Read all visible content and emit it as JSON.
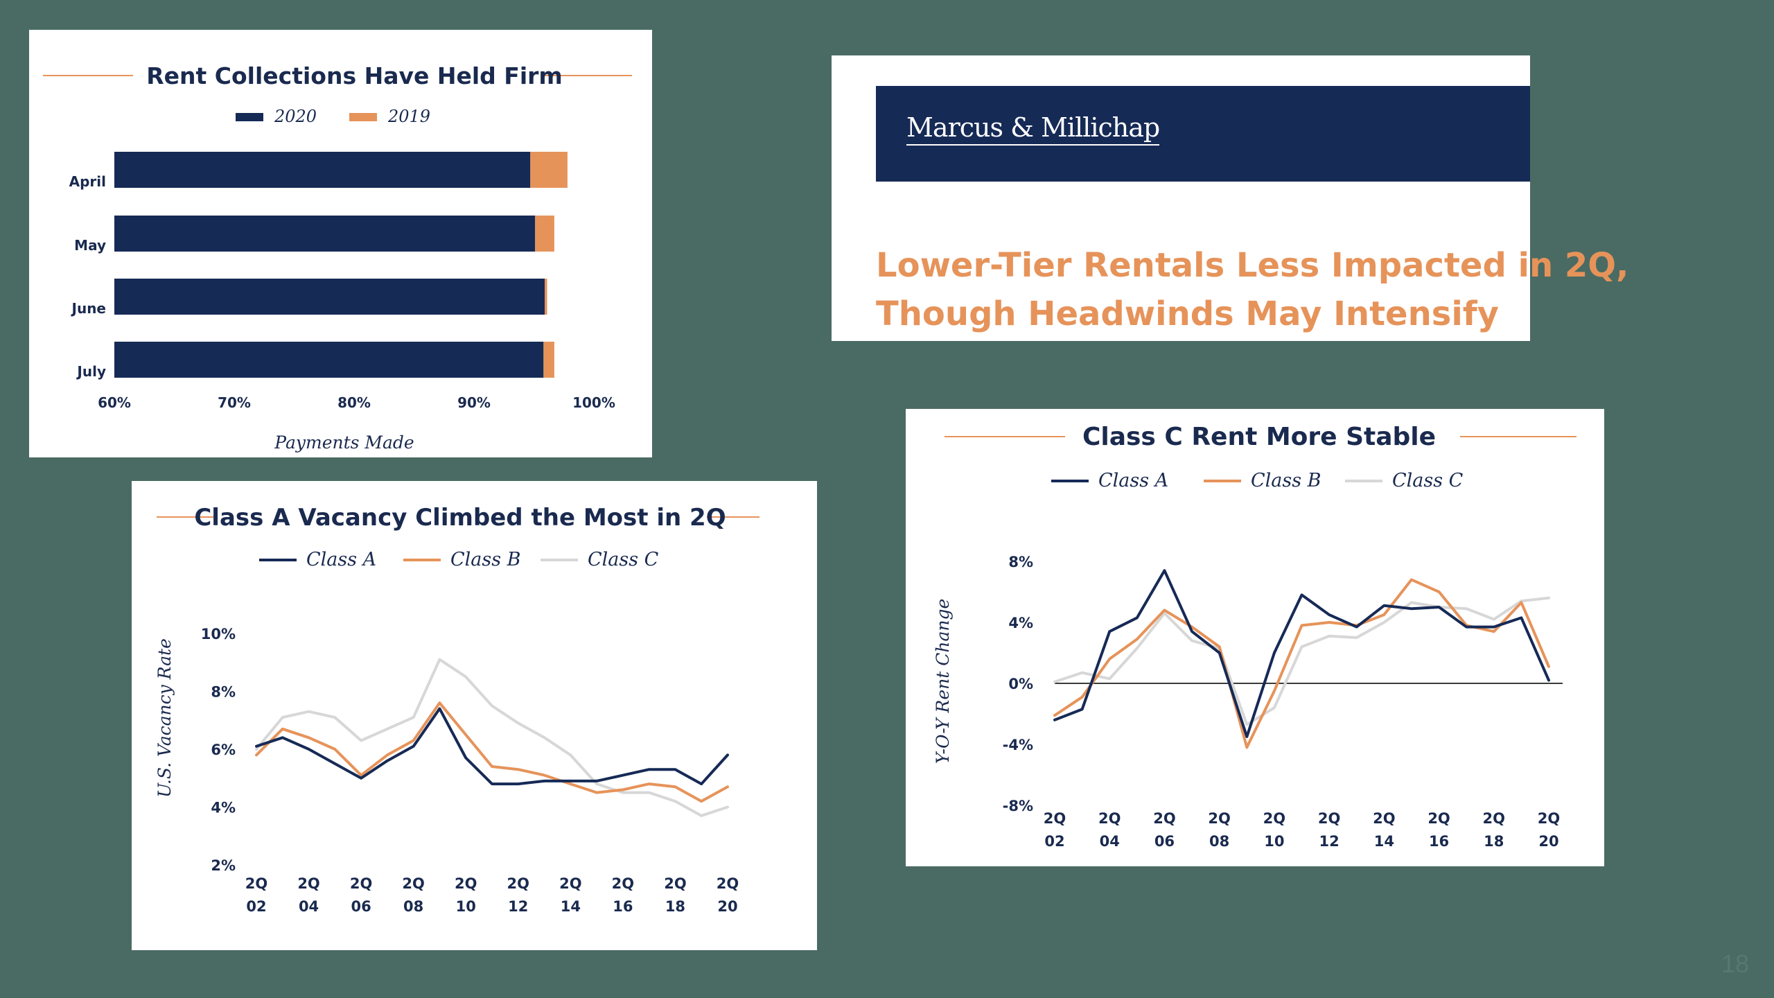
{
  "slide": {
    "page_number": "18"
  },
  "brand": {
    "logo_text": "Marcus & Millichap",
    "headline_line1": "Lower-Tier Rentals Less Impacted in 2Q,",
    "headline_line2": "Though Headwinds May Intensify"
  },
  "colors": {
    "navy": "#162a56",
    "orange": "#e6935a",
    "light_gray": "#d7d7d7",
    "background": "#4a6b63"
  },
  "chart_data": [
    {
      "id": "rent-collections",
      "type": "bar",
      "title": "Rent Collections Have Held Firm",
      "xlabel": "Payments Made",
      "xlim": [
        60,
        100
      ],
      "x_ticks": [
        "60%",
        "70%",
        "80%",
        "90%",
        "100%"
      ],
      "x_tick_values": [
        60,
        70,
        80,
        90,
        100
      ],
      "categories": [
        "April",
        "May",
        "June",
        "July"
      ],
      "series": [
        {
          "name": "2020",
          "color": "#162a56",
          "values": [
            94.7,
            95.1,
            95.9,
            95.8
          ]
        },
        {
          "name": "2019",
          "color": "#e6935a",
          "values": [
            97.8,
            96.7,
            96.1,
            96.7
          ]
        }
      ],
      "legend": "top"
    },
    {
      "id": "class-vacancy",
      "type": "line",
      "title": "Class A Vacancy Climbed the Most in 2Q",
      "ylabel": "U.S. Vacancy Rate",
      "ylim": [
        2,
        10
      ],
      "y_ticks": [
        "2%",
        "4%",
        "6%",
        "8%",
        "10%"
      ],
      "y_tick_values": [
        2,
        4,
        6,
        8,
        10
      ],
      "xlim": [
        2002,
        2020
      ],
      "x_ticks": [
        [
          "2Q",
          "02"
        ],
        [
          "2Q",
          "04"
        ],
        [
          "2Q",
          "06"
        ],
        [
          "2Q",
          "08"
        ],
        [
          "2Q",
          "10"
        ],
        [
          "2Q",
          "12"
        ],
        [
          "2Q",
          "14"
        ],
        [
          "2Q",
          "16"
        ],
        [
          "2Q",
          "18"
        ],
        [
          "2Q",
          "20"
        ]
      ],
      "x_tick_values": [
        2002,
        2004,
        2006,
        2008,
        2010,
        2012,
        2014,
        2016,
        2018,
        2020
      ],
      "x": [
        2002,
        2003,
        2004,
        2005,
        2006,
        2007,
        2008,
        2009,
        2010,
        2011,
        2012,
        2013,
        2014,
        2015,
        2016,
        2017,
        2018,
        2019,
        2020
      ],
      "series": [
        {
          "name": "Class A",
          "color": "#162a56",
          "values": [
            6.1,
            6.4,
            6.0,
            5.5,
            5.0,
            5.6,
            6.1,
            7.4,
            5.7,
            4.8,
            4.8,
            4.9,
            4.9,
            4.9,
            5.1,
            5.3,
            5.3,
            4.8,
            5.8
          ]
        },
        {
          "name": "Class B",
          "color": "#e6935a",
          "values": [
            5.8,
            6.7,
            6.4,
            6.0,
            5.1,
            5.8,
            6.3,
            7.6,
            6.5,
            5.4,
            5.3,
            5.1,
            4.8,
            4.5,
            4.6,
            4.8,
            4.7,
            4.2,
            4.7
          ]
        },
        {
          "name": "Class C",
          "color": "#d7d7d7",
          "values": [
            6.0,
            7.1,
            7.3,
            7.1,
            6.3,
            6.7,
            7.1,
            9.1,
            8.5,
            7.5,
            6.9,
            6.4,
            5.8,
            4.8,
            4.5,
            4.5,
            4.2,
            3.7,
            4.0
          ]
        }
      ],
      "legend": "top"
    },
    {
      "id": "rent-change",
      "type": "line",
      "title": "Class C Rent More Stable",
      "ylabel": "Y-O-Y Rent Change",
      "ylim": [
        -8,
        8
      ],
      "y_ticks": [
        "-8%",
        "-4%",
        "0%",
        "4%",
        "8%"
      ],
      "y_tick_values": [
        -8,
        -4,
        0,
        4,
        8
      ],
      "xlim": [
        2002,
        2020
      ],
      "x_ticks": [
        [
          "2Q",
          "02"
        ],
        [
          "2Q",
          "04"
        ],
        [
          "2Q",
          "06"
        ],
        [
          "2Q",
          "08"
        ],
        [
          "2Q",
          "10"
        ],
        [
          "2Q",
          "12"
        ],
        [
          "2Q",
          "14"
        ],
        [
          "2Q",
          "16"
        ],
        [
          "2Q",
          "18"
        ],
        [
          "2Q",
          "20"
        ]
      ],
      "x_tick_values": [
        2002,
        2004,
        2006,
        2008,
        2010,
        2012,
        2014,
        2016,
        2018,
        2020
      ],
      "x": [
        2002,
        2003,
        2004,
        2005,
        2006,
        2007,
        2008,
        2009,
        2010,
        2011,
        2012,
        2013,
        2014,
        2015,
        2016,
        2017,
        2018,
        2019,
        2020
      ],
      "series": [
        {
          "name": "Class A",
          "color": "#162a56",
          "values": [
            -2.4,
            -1.7,
            3.4,
            4.3,
            7.4,
            3.4,
            2.0,
            -3.5,
            2.0,
            5.8,
            4.5,
            3.7,
            5.1,
            4.9,
            5.0,
            3.7,
            3.7,
            4.3,
            0.2
          ]
        },
        {
          "name": "Class B",
          "color": "#e6935a",
          "values": [
            -2.1,
            -0.9,
            1.6,
            2.9,
            4.8,
            3.7,
            2.4,
            -4.2,
            -0.5,
            3.8,
            4.0,
            3.8,
            4.5,
            6.8,
            6.0,
            3.8,
            3.4,
            5.3,
            1.1
          ]
        },
        {
          "name": "Class C",
          "color": "#d7d7d7",
          "values": [
            0.1,
            0.7,
            0.3,
            2.3,
            4.6,
            2.8,
            2.3,
            -2.7,
            -1.6,
            2.4,
            3.1,
            3.0,
            4.0,
            5.3,
            5.0,
            4.9,
            4.2,
            5.4,
            5.6
          ]
        }
      ],
      "legend": "top"
    }
  ]
}
